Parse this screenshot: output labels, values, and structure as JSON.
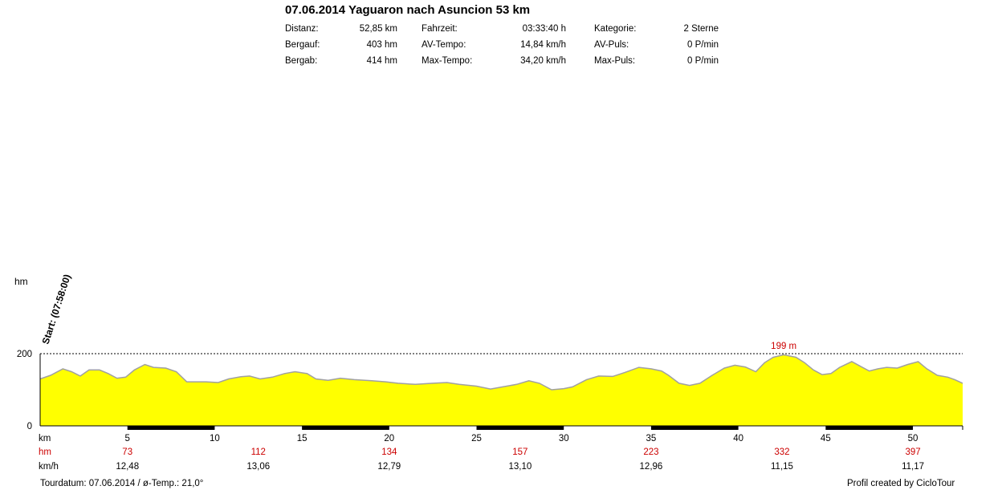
{
  "header": {
    "title": "07.06.2014 Yaguaron nach Asuncion 53 km",
    "stats": [
      [
        {
          "label": "Distanz:",
          "value": "52,85 km"
        },
        {
          "label": "Fahrzeit:",
          "value": "03:33:40 h"
        },
        {
          "label": "Kategorie:",
          "value": "2 Sterne"
        }
      ],
      [
        {
          "label": "Bergauf:",
          "value": "403 hm"
        },
        {
          "label": "AV-Tempo:",
          "value": "14,84 km/h"
        },
        {
          "label": "AV-Puls:",
          "value": "0 P/min"
        }
      ],
      [
        {
          "label": "Bergab:",
          "value": "414 hm"
        },
        {
          "label": "Max-Tempo:",
          "value": "34,20 km/h"
        },
        {
          "label": "Max-Puls:",
          "value": "0 P/min"
        }
      ]
    ]
  },
  "footer": {
    "left": "Tourdatum: 07.06.2014  /  ø-Temp.: 21,0°",
    "right": "Profil created by CicloTour"
  },
  "chart_data": {
    "type": "area",
    "ylabel": "hm",
    "xlim": [
      0,
      52.85
    ],
    "ylim": [
      0,
      400
    ],
    "y_ticks": [
      0,
      200
    ],
    "x_ticks": [
      5,
      10,
      15,
      20,
      25,
      30,
      35,
      40,
      45,
      50
    ],
    "x_tick_unit": "km",
    "start_label": "Start: (07:58:00)",
    "max_label": "199 m",
    "max_line": 200,
    "fill_color": "#ffff00",
    "line_color": "#a0a0a0",
    "row_labels": {
      "hm": "hm",
      "kmh": "km/h"
    },
    "hm_values": [
      {
        "x": 5,
        "label": "73"
      },
      {
        "x": 12.5,
        "label": "112"
      },
      {
        "x": 20,
        "label": "134"
      },
      {
        "x": 27.5,
        "label": "157"
      },
      {
        "x": 35,
        "label": "223"
      },
      {
        "x": 42.5,
        "label": "332"
      },
      {
        "x": 50,
        "label": "397"
      }
    ],
    "kmh_values": [
      {
        "x": 5,
        "label": "12,48"
      },
      {
        "x": 12.5,
        "label": "13,06"
      },
      {
        "x": 20,
        "label": "12,79"
      },
      {
        "x": 27.5,
        "label": "13,10"
      },
      {
        "x": 35,
        "label": "12,96"
      },
      {
        "x": 42.5,
        "label": "11,15"
      },
      {
        "x": 50,
        "label": "11,17"
      }
    ],
    "profile": [
      [
        0,
        130
      ],
      [
        0.6,
        140
      ],
      [
        1.3,
        158
      ],
      [
        1.8,
        150
      ],
      [
        2.3,
        138
      ],
      [
        2.8,
        155
      ],
      [
        3.4,
        155
      ],
      [
        3.9,
        145
      ],
      [
        4.4,
        132
      ],
      [
        4.9,
        135
      ],
      [
        5.4,
        155
      ],
      [
        6.0,
        170
      ],
      [
        6.5,
        162
      ],
      [
        7.2,
        160
      ],
      [
        7.8,
        150
      ],
      [
        8.4,
        122
      ],
      [
        9.5,
        122
      ],
      [
        10.2,
        120
      ],
      [
        10.8,
        130
      ],
      [
        11.5,
        136
      ],
      [
        12.0,
        138
      ],
      [
        12.6,
        130
      ],
      [
        13.3,
        135
      ],
      [
        14.0,
        145
      ],
      [
        14.6,
        150
      ],
      [
        15.3,
        145
      ],
      [
        15.8,
        130
      ],
      [
        16.5,
        126
      ],
      [
        17.2,
        132
      ],
      [
        18.0,
        128
      ],
      [
        19.0,
        125
      ],
      [
        19.8,
        122
      ],
      [
        20.5,
        118
      ],
      [
        21.5,
        115
      ],
      [
        22.5,
        118
      ],
      [
        23.3,
        120
      ],
      [
        24.0,
        115
      ],
      [
        25.0,
        110
      ],
      [
        25.8,
        102
      ],
      [
        26.5,
        108
      ],
      [
        27.3,
        115
      ],
      [
        28.0,
        125
      ],
      [
        28.6,
        118
      ],
      [
        29.3,
        100
      ],
      [
        30.0,
        103
      ],
      [
        30.5,
        108
      ],
      [
        31.3,
        128
      ],
      [
        32.0,
        138
      ],
      [
        32.8,
        137
      ],
      [
        33.5,
        148
      ],
      [
        34.3,
        162
      ],
      [
        35.0,
        158
      ],
      [
        35.6,
        152
      ],
      [
        36.0,
        140
      ],
      [
        36.6,
        118
      ],
      [
        37.2,
        112
      ],
      [
        37.8,
        118
      ],
      [
        38.5,
        140
      ],
      [
        39.2,
        160
      ],
      [
        39.8,
        168
      ],
      [
        40.4,
        163
      ],
      [
        41.0,
        150
      ],
      [
        41.5,
        175
      ],
      [
        42.0,
        190
      ],
      [
        42.6,
        197
      ],
      [
        43.3,
        190
      ],
      [
        43.8,
        175
      ],
      [
        44.3,
        155
      ],
      [
        44.8,
        142
      ],
      [
        45.3,
        145
      ],
      [
        45.8,
        162
      ],
      [
        46.5,
        178
      ],
      [
        47.0,
        165
      ],
      [
        47.5,
        152
      ],
      [
        48.0,
        158
      ],
      [
        48.5,
        162
      ],
      [
        49.1,
        160
      ],
      [
        49.7,
        170
      ],
      [
        50.3,
        178
      ],
      [
        50.8,
        158
      ],
      [
        51.4,
        140
      ],
      [
        52.0,
        135
      ],
      [
        52.4,
        128
      ],
      [
        52.85,
        118
      ]
    ]
  }
}
